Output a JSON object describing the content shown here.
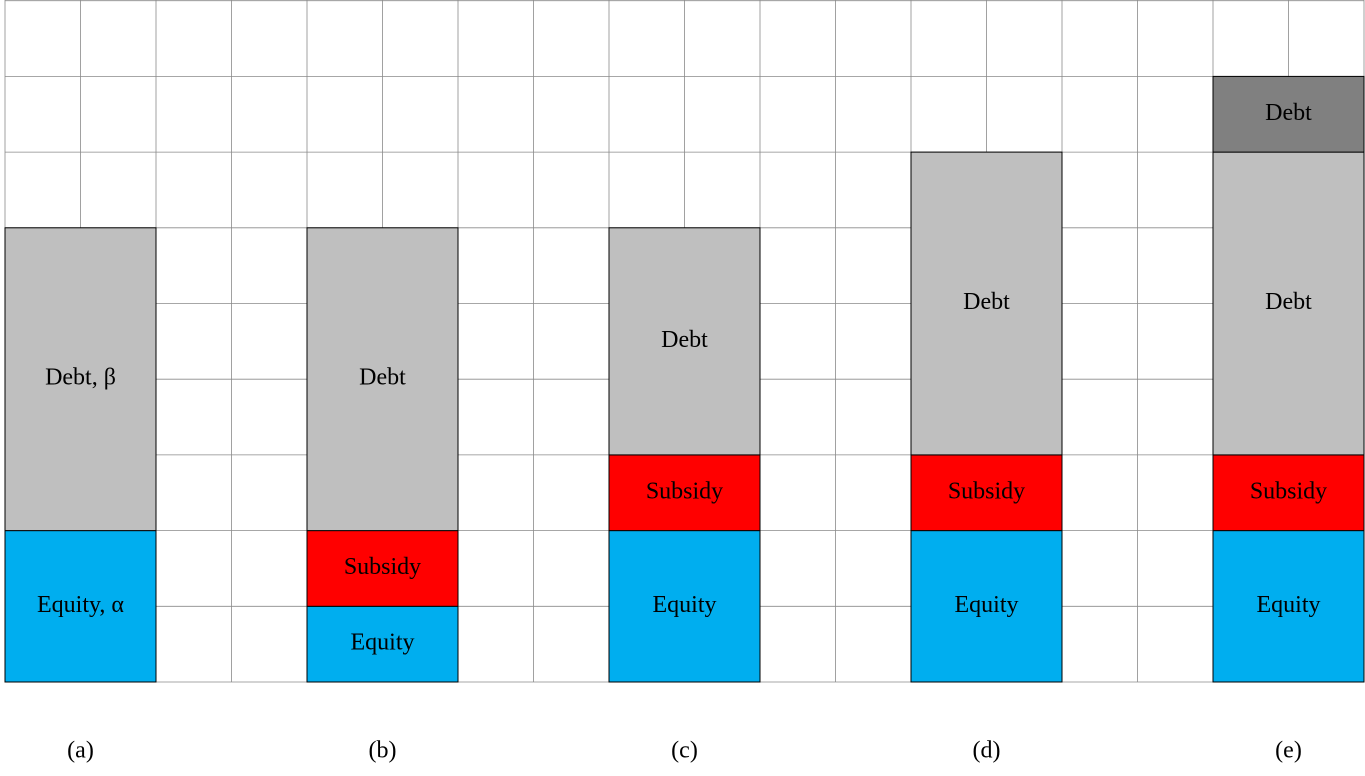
{
  "panels": [
    {
      "caption": "(a)",
      "segments": [
        {
          "label": "Equity, α"
        },
        {
          "label": "Debt, β"
        }
      ]
    },
    {
      "caption": "(b)",
      "segments": [
        {
          "label": "Equity"
        },
        {
          "label": "Subsidy"
        },
        {
          "label": "Debt"
        }
      ]
    },
    {
      "caption": "(c)",
      "segments": [
        {
          "label": "Equity"
        },
        {
          "label": "Subsidy"
        },
        {
          "label": "Debt"
        }
      ]
    },
    {
      "caption": "(d)",
      "segments": [
        {
          "label": "Equity"
        },
        {
          "label": "Subsidy"
        },
        {
          "label": "Debt"
        }
      ]
    },
    {
      "caption": "(e)",
      "segments": [
        {
          "label": "Equity"
        },
        {
          "label": "Subsidy"
        },
        {
          "label": "Debt"
        },
        {
          "label": "Debt"
        }
      ]
    }
  ]
}
